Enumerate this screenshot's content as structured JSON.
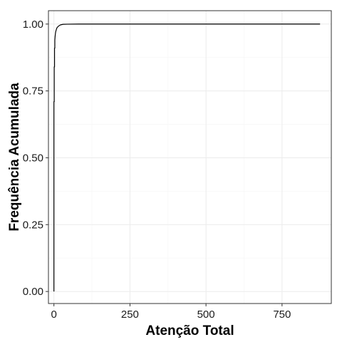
{
  "chart_data": {
    "type": "line",
    "title": "",
    "xlabel": "Atenção Total",
    "ylabel": "Frequência Acumulada",
    "xlim": [
      -18,
      912
    ],
    "ylim": [
      -0.045,
      1.05
    ],
    "x_ticks": [
      0,
      250,
      500,
      750
    ],
    "x_tick_labels": [
      "0",
      "250",
      "500",
      "750"
    ],
    "y_ticks": [
      0,
      0.25,
      0.5,
      0.75,
      1
    ],
    "y_tick_labels": [
      "0.00",
      "0.25",
      "0.50",
      "0.75",
      "1.00"
    ],
    "grid": true,
    "legend": "none",
    "series": [
      {
        "x": [
          0,
          0,
          1,
          1,
          2,
          2,
          3,
          3,
          4,
          5,
          6,
          8,
          10,
          13,
          17,
          22,
          30,
          45,
          80,
          200,
          450,
          875
        ],
        "y": [
          0,
          0.71,
          0.71,
          0.84,
          0.84,
          0.91,
          0.91,
          0.94,
          0.955,
          0.965,
          0.972,
          0.98,
          0.986,
          0.99,
          0.994,
          0.997,
          0.999,
          0.9995,
          1.0,
          1.0,
          1.0,
          1.0
        ]
      }
    ],
    "colors": {
      "line": "#000000",
      "grid_major": "#ebebeb",
      "grid_minor": "#f5f5f5",
      "panel_border": "#333333"
    }
  }
}
